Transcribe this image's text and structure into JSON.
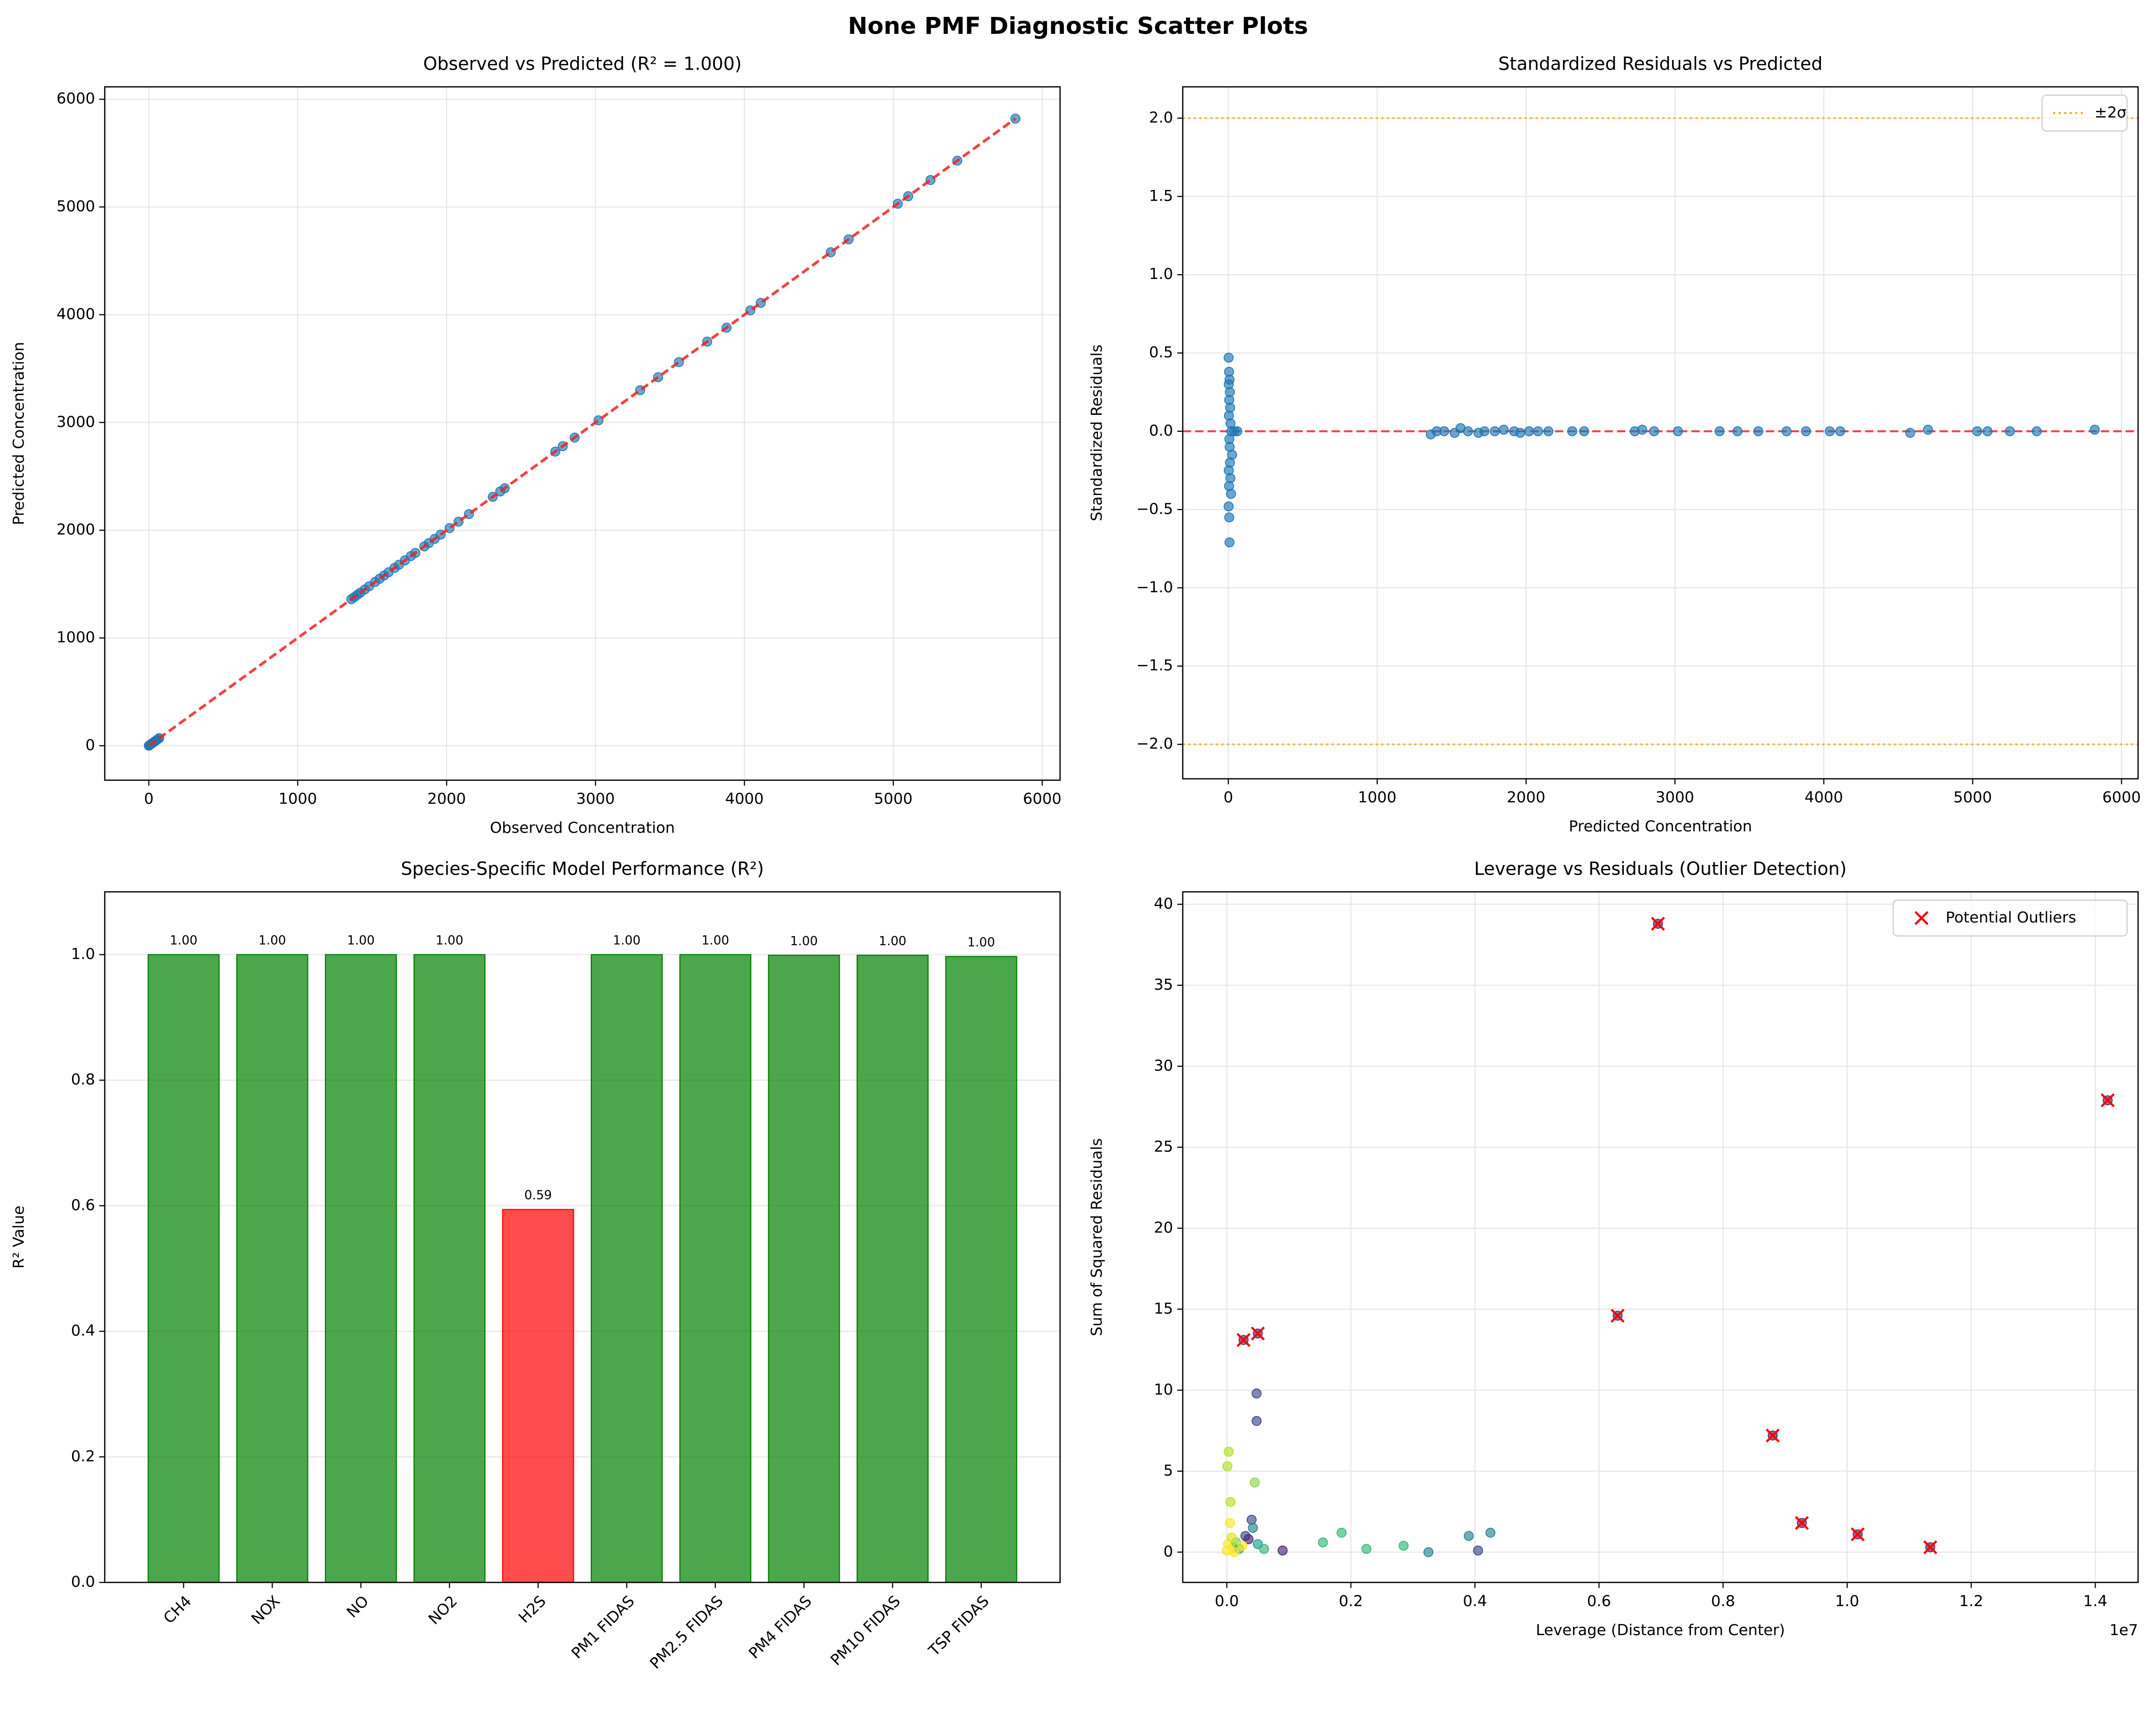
{
  "title": "None PMF Diagnostic Scatter Plots",
  "chart_data": [
    {
      "type": "scatter",
      "title": "Observed vs Predicted (R² = 1.000)",
      "xlabel": "Observed Concentration",
      "ylabel": "Predicted Concentration",
      "xlim": [
        -296,
        6120
      ],
      "ylim": [
        -320,
        6115
      ],
      "xticks": [
        0,
        1000,
        2000,
        3000,
        4000,
        5000,
        6000
      ],
      "yticks": [
        0,
        1000,
        2000,
        3000,
        4000,
        5000,
        6000
      ],
      "grid": true,
      "color": "#1f77b4",
      "x": [
        0,
        5,
        10,
        15,
        20,
        30,
        40,
        50,
        60,
        70,
        1360,
        1380,
        1400,
        1420,
        1450,
        1480,
        1520,
        1550,
        1580,
        1610,
        1650,
        1680,
        1720,
        1760,
        1790,
        1850,
        1880,
        1920,
        1960,
        2020,
        2080,
        2150,
        2310,
        2360,
        2390,
        2730,
        2780,
        2860,
        3020,
        3300,
        3420,
        3560,
        3750,
        3880,
        4040,
        4110,
        4580,
        4700,
        5030,
        5100,
        5250,
        5430,
        5820
      ],
      "y": [
        0,
        5,
        10,
        15,
        20,
        30,
        40,
        50,
        60,
        70,
        1360,
        1380,
        1400,
        1420,
        1450,
        1480,
        1520,
        1550,
        1580,
        1610,
        1650,
        1680,
        1720,
        1760,
        1790,
        1850,
        1880,
        1920,
        1960,
        2020,
        2080,
        2150,
        2310,
        2360,
        2390,
        2730,
        2780,
        2860,
        3020,
        3300,
        3420,
        3560,
        3750,
        3880,
        4040,
        4110,
        4580,
        4700,
        5030,
        5100,
        5250,
        5430,
        5820
      ],
      "reference_line": {
        "x": [
          0,
          5820
        ],
        "y": [
          0,
          5820
        ],
        "color": "#ee2222"
      }
    },
    {
      "type": "scatter",
      "title": "Standardized Residuals vs Predicted",
      "xlabel": "Predicted Concentration",
      "ylabel": "Standardized Residuals",
      "xlim": [
        -306,
        6111
      ],
      "ylim": [
        -2.22,
        2.2
      ],
      "xticks": [
        0,
        1000,
        2000,
        3000,
        4000,
        5000,
        6000
      ],
      "yticks": [
        {
          "value": 2,
          "label": "2.0"
        },
        {
          "value": 1.5,
          "label": "1.5"
        },
        {
          "value": 1,
          "label": "1.0"
        },
        {
          "value": 0.5,
          "label": "0.5"
        },
        {
          "value": 0,
          "label": "0.0"
        },
        {
          "value": -0.5,
          "label": "−0.5"
        },
        {
          "value": -1,
          "label": "−1.0"
        },
        {
          "value": -1.5,
          "label": "−1.5"
        },
        {
          "value": -2,
          "label": "−2.0"
        }
      ],
      "grid": true,
      "color": "#1f77b4",
      "x": [
        2,
        5,
        8,
        3,
        10,
        6,
        12,
        4,
        15,
        20,
        7,
        9,
        25,
        11,
        3,
        14,
        5,
        18,
        2,
        6,
        8,
        40,
        60,
        1360,
        1400,
        1450,
        1520,
        1560,
        1610,
        1680,
        1720,
        1790,
        1850,
        1920,
        1960,
        2020,
        2080,
        2150,
        2310,
        2390,
        2730,
        2780,
        2860,
        3020,
        3300,
        3420,
        3560,
        3750,
        3880,
        4040,
        4110,
        4580,
        4700,
        5030,
        5100,
        5250,
        5430,
        5820
      ],
      "y": [
        0.47,
        0.38,
        0.33,
        0.3,
        0.25,
        0.2,
        0.15,
        0.1,
        0.05,
        0,
        -0.05,
        -0.1,
        -0.15,
        -0.2,
        -0.25,
        -0.3,
        -0.35,
        -0.4,
        -0.48,
        -0.55,
        -0.71,
        0,
        0,
        -0.02,
        0,
        0,
        -0.01,
        0.02,
        0,
        -0.01,
        0,
        0,
        0.01,
        0,
        -0.01,
        0,
        0,
        0,
        0,
        0,
        0,
        0.01,
        0,
        0,
        0,
        0,
        0,
        0,
        0,
        0,
        0,
        -0.01,
        0.01,
        0,
        0,
        0,
        0,
        0.01
      ],
      "zero_line": {
        "value": 0,
        "color": "#ee2222"
      },
      "reference_lines": {
        "name": "±2σ",
        "values": [
          2,
          -2
        ],
        "color": "orange"
      },
      "legend": "upper right"
    },
    {
      "type": "bar",
      "title": "Species-Specific Model Performance (R²)",
      "ylabel": "R² Value",
      "categories": [
        "CH4",
        "NOX",
        "NO",
        "NO2",
        "H2S",
        "PM1 FIDAS",
        "PM2.5 FIDAS",
        "PM4 FIDAS",
        "PM10 FIDAS",
        "TSP FIDAS"
      ],
      "values": [
        1.0,
        1.0,
        1.0,
        1.0,
        0.594,
        1.0,
        1.0,
        0.999,
        0.999,
        0.997
      ],
      "value_labels": [
        "1.00",
        "1.00",
        "1.00",
        "1.00",
        "0.59",
        "1.00",
        "1.00",
        "1.00",
        "1.00",
        "1.00"
      ],
      "colors": [
        "green",
        "green",
        "green",
        "green",
        "red",
        "green",
        "green",
        "green",
        "green",
        "green"
      ],
      "ylim": [
        0,
        1.1
      ],
      "yticks": [
        {
          "value": 0,
          "label": "0.0"
        },
        {
          "value": 0.2,
          "label": "0.2"
        },
        {
          "value": 0.4,
          "label": "0.4"
        },
        {
          "value": 0.6,
          "label": "0.6"
        },
        {
          "value": 0.8,
          "label": "0.8"
        },
        {
          "value": 1,
          "label": "1.0"
        }
      ],
      "grid": true
    },
    {
      "type": "scatter",
      "title": "Leverage vs Residuals (Outlier Detection)",
      "xlabel": "Leverage (Distance from Center)",
      "ylabel": "Sum of Squared Residuals",
      "x_offset_label": "1e7",
      "xlim": [
        -710000,
        14690000
      ],
      "ylim": [
        -1.87,
        40.77
      ],
      "xticks": [
        {
          "value": 0,
          "label": "0.0"
        },
        {
          "value": 2000000,
          "label": "0.2"
        },
        {
          "value": 4000000,
          "label": "0.4"
        },
        {
          "value": 6000000,
          "label": "0.6"
        },
        {
          "value": 8000000,
          "label": "0.8"
        },
        {
          "value": 10000000,
          "label": "1.0"
        },
        {
          "value": 12000000,
          "label": "1.2"
        },
        {
          "value": 14000000,
          "label": "1.4"
        }
      ],
      "yticks": [
        0,
        5,
        10,
        15,
        20,
        25,
        30,
        35,
        40
      ],
      "grid": true,
      "legend": "upper right",
      "series": [
        {
          "x": [
            0,
            20000,
            50000,
            30000,
            10000,
            60000,
            100000,
            150000,
            200000,
            300000,
            350000,
            400000,
            420000,
            450000,
            480000,
            480000,
            500000,
            600000,
            900000,
            1550000,
            1850000,
            2250000,
            2850000,
            3250000,
            3900000,
            4050000,
            4250000,
            250000,
            80000,
            120000,
            6950000,
            14200000,
            6300000,
            270000,
            500000,
            8800000,
            9270000,
            10170000,
            11340000
          ],
          "y": [
            0.1,
            0.5,
            1.8,
            6.2,
            5.3,
            3.1,
            0.3,
            0.6,
            0.2,
            1.0,
            0.8,
            2.0,
            1.5,
            4.3,
            9.8,
            8.1,
            0.5,
            0.2,
            0.1,
            0.6,
            1.2,
            0.2,
            0.4,
            0.0,
            1.0,
            0.1,
            1.2,
            0.4,
            0.9,
            0.0,
            38.8,
            27.9,
            14.6,
            13.1,
            13.5,
            7.2,
            1.8,
            1.1,
            0.3
          ],
          "colors": [
            "#fde725",
            "#fde725",
            "#fde725",
            "#b5de2b",
            "#b5de2b",
            "#b5de2b",
            "#fde725",
            "#6ece58",
            "#35b779",
            "#3e4989",
            "#482878",
            "#3e4989",
            "#26828e",
            "#90d743",
            "#3e4989",
            "#3e4989",
            "#1f9e89",
            "#35b779",
            "#482878",
            "#35b779",
            "#35b779",
            "#35b779",
            "#35b779",
            "#26828e",
            "#26828e",
            "#3e4989",
            "#26828e",
            "#fde725",
            "#dde318",
            "#fde725",
            "#482878",
            "#482878",
            "#482878",
            "#482878",
            "#482878",
            "#482878",
            "#482878",
            "#482878",
            "#482878"
          ]
        },
        {
          "name": "Potential Outliers",
          "marker": "x",
          "color": "red",
          "x": [
            6950000,
            14200000,
            6300000,
            270000,
            500000,
            8800000,
            9270000,
            10170000,
            11340000
          ],
          "y": [
            38.8,
            27.9,
            14.6,
            13.1,
            13.5,
            7.2,
            1.8,
            1.1,
            0.3
          ]
        }
      ]
    }
  ]
}
